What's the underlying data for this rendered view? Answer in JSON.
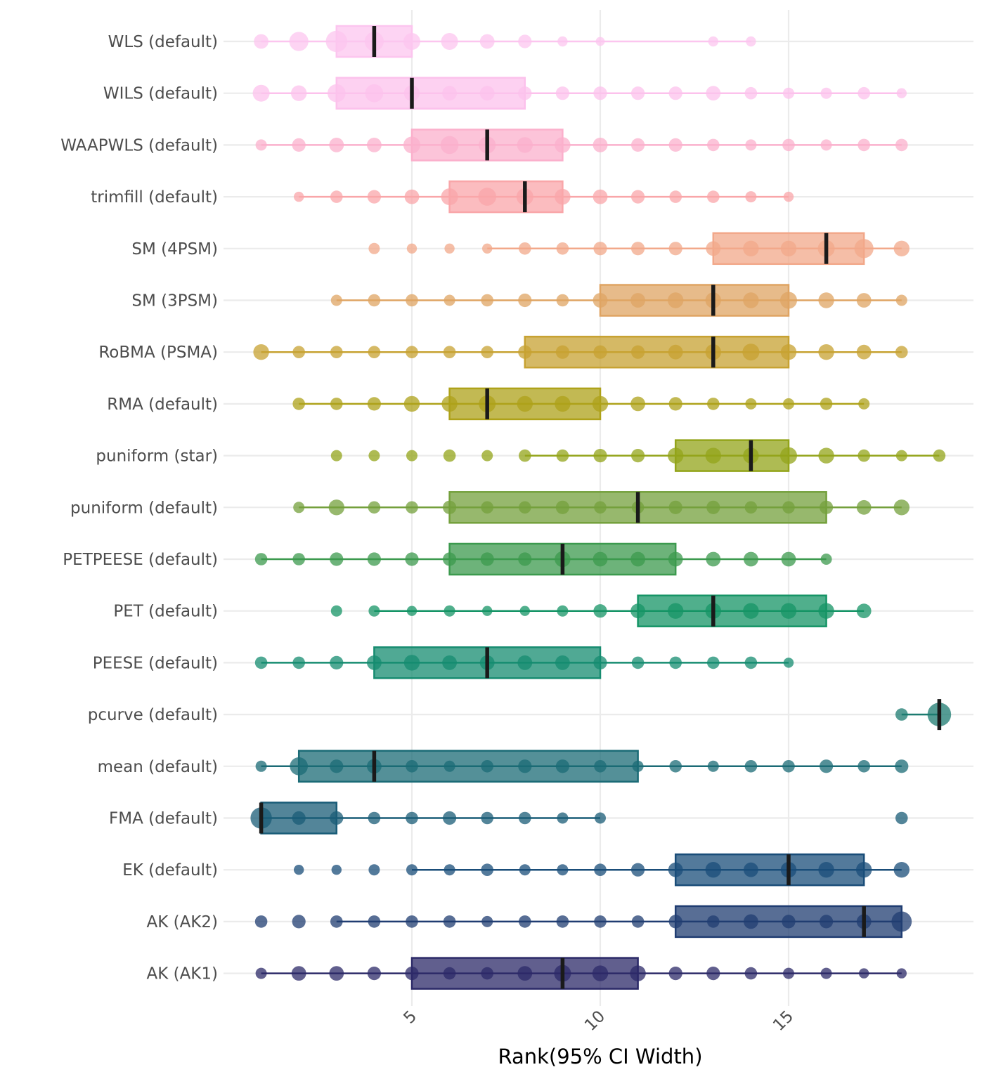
{
  "chart_data": {
    "type": "rank-distribution-boxplot",
    "xlabel": "Rank(95% CI Width)",
    "x_ticks": [
      5,
      10,
      15
    ],
    "xlim": [
      0.1,
      19.9
    ],
    "grid": true,
    "legend": "none",
    "methods": [
      {
        "label": "WLS (default)",
        "color": "#fcc5ef",
        "q1": 3,
        "median": 4,
        "q3": 5,
        "whisker": [
          1,
          14
        ],
        "ranks": [
          1,
          2,
          3,
          4,
          5,
          6,
          7,
          8,
          9,
          10,
          13,
          14
        ],
        "sizes": [
          0.4,
          0.6,
          0.7,
          0.6,
          0.5,
          0.5,
          0.4,
          0.35,
          0.2,
          0.15,
          0.2,
          0.2
        ]
      },
      {
        "label": "WILS (default)",
        "color": "#fcc1ec",
        "q1": 3,
        "median": 5,
        "q3": 8,
        "whisker": [
          1,
          18
        ],
        "ranks": [
          1,
          2,
          3,
          4,
          5,
          6,
          7,
          8,
          9,
          10,
          11,
          12,
          13,
          14,
          15,
          16,
          17,
          18
        ],
        "sizes": [
          0.5,
          0.45,
          0.55,
          0.55,
          0.45,
          0.4,
          0.4,
          0.35,
          0.35,
          0.35,
          0.35,
          0.35,
          0.4,
          0.3,
          0.25,
          0.25,
          0.3,
          0.2
        ]
      },
      {
        "label": "WAAPWLS (default)",
        "color": "#fbb0cc",
        "q1": 5,
        "median": 7,
        "q3": 9,
        "whisker": [
          1,
          18
        ],
        "ranks": [
          1,
          2,
          3,
          4,
          5,
          6,
          7,
          8,
          9,
          10,
          11,
          12,
          13,
          14,
          15,
          16,
          17,
          18
        ],
        "sizes": [
          0.25,
          0.35,
          0.4,
          0.4,
          0.5,
          0.55,
          0.5,
          0.45,
          0.45,
          0.4,
          0.35,
          0.35,
          0.3,
          0.25,
          0.3,
          0.25,
          0.3,
          0.3
        ]
      },
      {
        "label": "trimfill (default)",
        "color": "#f9a6a9",
        "q1": 6,
        "median": 8,
        "q3": 9,
        "whisker": [
          2,
          15
        ],
        "ranks": [
          2,
          3,
          4,
          5,
          6,
          7,
          8,
          9,
          10,
          11,
          12,
          13,
          14,
          15
        ],
        "sizes": [
          0.2,
          0.3,
          0.35,
          0.4,
          0.5,
          0.55,
          0.5,
          0.45,
          0.4,
          0.35,
          0.3,
          0.3,
          0.25,
          0.2
        ]
      },
      {
        "label": "SM (4PSM)",
        "color": "#f2a88a",
        "q1": 13,
        "median": 16,
        "q3": 17,
        "whisker": [
          7,
          18
        ],
        "ranks": [
          4,
          5,
          6,
          7,
          8,
          9,
          10,
          11,
          12,
          13,
          14,
          15,
          16,
          17,
          18
        ],
        "sizes": [
          0.25,
          0.2,
          0.2,
          0.2,
          0.3,
          0.3,
          0.35,
          0.35,
          0.35,
          0.4,
          0.45,
          0.45,
          0.5,
          0.6,
          0.45
        ]
      },
      {
        "label": "SM (3PSM)",
        "color": "#dfa463",
        "q1": 10,
        "median": 13,
        "q3": 15,
        "whisker": [
          3,
          18
        ],
        "ranks": [
          3,
          4,
          5,
          6,
          7,
          8,
          9,
          10,
          11,
          12,
          13,
          14,
          15,
          16,
          17,
          18
        ],
        "sizes": [
          0.25,
          0.3,
          0.3,
          0.25,
          0.3,
          0.35,
          0.3,
          0.4,
          0.4,
          0.45,
          0.45,
          0.45,
          0.5,
          0.45,
          0.4,
          0.25
        ]
      },
      {
        "label": "RoBMA (PSMA)",
        "color": "#c7a232",
        "q1": 8,
        "median": 13,
        "q3": 15,
        "whisker": [
          1,
          18
        ],
        "ranks": [
          1,
          2,
          3,
          4,
          5,
          6,
          7,
          8,
          9,
          10,
          11,
          12,
          13,
          14,
          15,
          16,
          17,
          18
        ],
        "sizes": [
          0.45,
          0.3,
          0.3,
          0.3,
          0.3,
          0.3,
          0.3,
          0.35,
          0.35,
          0.35,
          0.35,
          0.4,
          0.45,
          0.5,
          0.45,
          0.45,
          0.4,
          0.3
        ]
      },
      {
        "label": "RMA (default)",
        "color": "#aea219",
        "q1": 6,
        "median": 7,
        "q3": 10,
        "whisker": [
          2,
          17
        ],
        "ranks": [
          2,
          3,
          4,
          5,
          6,
          7,
          8,
          9,
          10,
          11,
          12,
          13,
          14,
          15,
          16,
          17
        ],
        "sizes": [
          0.3,
          0.3,
          0.35,
          0.45,
          0.45,
          0.5,
          0.45,
          0.45,
          0.45,
          0.4,
          0.35,
          0.3,
          0.25,
          0.25,
          0.3,
          0.25
        ]
      },
      {
        "label": "puniform (star)",
        "color": "#93a41a",
        "q1": 12,
        "median": 14,
        "q3": 15,
        "whisker": [
          8,
          19
        ],
        "ranks": [
          3,
          4,
          5,
          6,
          7,
          8,
          9,
          10,
          11,
          12,
          13,
          14,
          15,
          16,
          17,
          18,
          19
        ],
        "sizes": [
          0.25,
          0.25,
          0.25,
          0.3,
          0.25,
          0.3,
          0.3,
          0.35,
          0.35,
          0.45,
          0.45,
          0.45,
          0.5,
          0.45,
          0.3,
          0.25,
          0.3
        ]
      },
      {
        "label": "puniform (default)",
        "color": "#74a03c",
        "q1": 6,
        "median": 11,
        "q3": 16,
        "whisker": [
          2,
          18
        ],
        "ranks": [
          2,
          3,
          4,
          5,
          6,
          7,
          8,
          9,
          10,
          11,
          12,
          13,
          14,
          15,
          16,
          17,
          18
        ],
        "sizes": [
          0.25,
          0.45,
          0.3,
          0.3,
          0.35,
          0.3,
          0.3,
          0.35,
          0.3,
          0.3,
          0.35,
          0.35,
          0.3,
          0.3,
          0.35,
          0.4,
          0.45
        ]
      },
      {
        "label": "PETPEESE (default)",
        "color": "#3c9a4e",
        "q1": 6,
        "median": 9,
        "q3": 12,
        "whisker": [
          1,
          16
        ],
        "ranks": [
          1,
          2,
          3,
          4,
          5,
          6,
          7,
          8,
          9,
          10,
          11,
          12,
          13,
          14,
          15,
          16
        ],
        "sizes": [
          0.3,
          0.3,
          0.35,
          0.35,
          0.35,
          0.35,
          0.35,
          0.35,
          0.45,
          0.4,
          0.4,
          0.4,
          0.4,
          0.4,
          0.4,
          0.25
        ]
      },
      {
        "label": "PET (default)",
        "color": "#159466",
        "q1": 11,
        "median": 13,
        "q3": 16,
        "whisker": [
          4,
          17
        ],
        "ranks": [
          3,
          4,
          5,
          6,
          7,
          8,
          9,
          10,
          11,
          12,
          13,
          14,
          15,
          16,
          17
        ],
        "sizes": [
          0.25,
          0.25,
          0.2,
          0.25,
          0.2,
          0.2,
          0.25,
          0.35,
          0.4,
          0.45,
          0.45,
          0.45,
          0.45,
          0.45,
          0.4
        ]
      },
      {
        "label": "PEESE (default)",
        "color": "#168c70",
        "q1": 4,
        "median": 7,
        "q3": 10,
        "whisker": [
          1,
          15
        ],
        "ranks": [
          1,
          2,
          3,
          4,
          5,
          6,
          7,
          8,
          9,
          10,
          11,
          12,
          13,
          14,
          15
        ],
        "sizes": [
          0.3,
          0.3,
          0.35,
          0.4,
          0.45,
          0.4,
          0.4,
          0.4,
          0.4,
          0.35,
          0.3,
          0.3,
          0.3,
          0.3,
          0.2
        ]
      },
      {
        "label": "pcurve (default)",
        "color": "#1c7b70",
        "q1": 19,
        "median": 19,
        "q3": 19,
        "whisker": [
          18,
          19
        ],
        "ranks": [
          18,
          19
        ],
        "sizes": [
          0.3,
          0.8
        ]
      },
      {
        "label": "mean (default)",
        "color": "#1b6b76",
        "q1": 2,
        "median": 4,
        "q3": 11,
        "whisker": [
          1,
          18
        ],
        "ranks": [
          1,
          2,
          3,
          4,
          5,
          6,
          7,
          8,
          9,
          10,
          11,
          12,
          13,
          14,
          15,
          16,
          17,
          18
        ],
        "sizes": [
          0.25,
          0.55,
          0.35,
          0.4,
          0.3,
          0.25,
          0.3,
          0.35,
          0.35,
          0.3,
          0.25,
          0.3,
          0.25,
          0.3,
          0.3,
          0.35,
          0.3,
          0.35
        ]
      },
      {
        "label": "FMA (default)",
        "color": "#195c77",
        "q1": 1,
        "median": 1,
        "q3": 3,
        "whisker": [
          1,
          10
        ],
        "ranks": [
          1,
          2,
          3,
          4,
          5,
          6,
          7,
          8,
          9,
          10,
          18
        ],
        "sizes": [
          0.7,
          0.35,
          0.35,
          0.3,
          0.3,
          0.35,
          0.3,
          0.3,
          0.25,
          0.25,
          0.3
        ]
      },
      {
        "label": "EK (default)",
        "color": "#1a4d79",
        "q1": 12,
        "median": 15,
        "q3": 17,
        "whisker": [
          5,
          18
        ],
        "ranks": [
          2,
          3,
          4,
          5,
          6,
          7,
          8,
          9,
          10,
          11,
          12,
          13,
          14,
          15,
          16,
          17,
          18
        ],
        "sizes": [
          0.2,
          0.2,
          0.25,
          0.25,
          0.25,
          0.3,
          0.25,
          0.25,
          0.3,
          0.35,
          0.4,
          0.45,
          0.4,
          0.45,
          0.45,
          0.45,
          0.45
        ]
      },
      {
        "label": "AK (AK2)",
        "color": "#203d72",
        "q1": 12,
        "median": 17,
        "q3": 18,
        "whisker": [
          3,
          18
        ],
        "ranks": [
          1,
          2,
          3,
          4,
          5,
          6,
          7,
          8,
          9,
          10,
          11,
          12,
          13,
          14,
          15,
          16,
          17,
          18
        ],
        "sizes": [
          0.3,
          0.35,
          0.3,
          0.3,
          0.3,
          0.3,
          0.25,
          0.3,
          0.3,
          0.3,
          0.3,
          0.35,
          0.3,
          0.4,
          0.35,
          0.35,
          0.4,
          0.65
        ]
      },
      {
        "label": "AK (AK1)",
        "color": "#2c2a68",
        "q1": 5,
        "median": 9,
        "q3": 11,
        "whisker": [
          1,
          18
        ],
        "ranks": [
          1,
          2,
          3,
          4,
          5,
          6,
          7,
          8,
          9,
          10,
          11,
          12,
          13,
          14,
          15,
          16,
          17,
          18
        ],
        "sizes": [
          0.25,
          0.4,
          0.4,
          0.35,
          0.35,
          0.3,
          0.3,
          0.4,
          0.5,
          0.45,
          0.45,
          0.35,
          0.35,
          0.3,
          0.25,
          0.25,
          0.2,
          0.2
        ]
      }
    ]
  }
}
